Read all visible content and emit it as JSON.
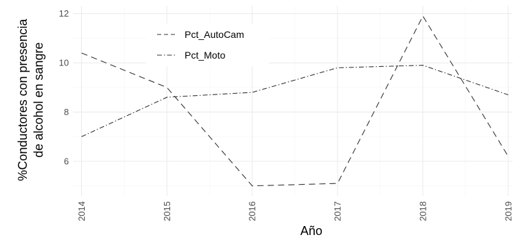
{
  "chart_data": {
    "type": "line",
    "x": [
      2014,
      2015,
      2016,
      2017,
      2018,
      2019
    ],
    "series": [
      {
        "name": "Pct_AutoCam",
        "linetype": "dashed",
        "color": "#333333",
        "values": [
          10.4,
          9.0,
          5.0,
          5.1,
          11.9,
          6.2
        ]
      },
      {
        "name": "Pct_Moto",
        "linetype": "dotdash",
        "color": "#333333",
        "values": [
          7.0,
          8.6,
          8.8,
          9.8,
          9.9,
          8.7
        ]
      }
    ],
    "xlabel": "Año",
    "ylabel_line1": "%Conductores con presencia",
    "ylabel_line2": "de alcohol en sangre",
    "y_ticks": [
      6,
      8,
      10,
      12
    ],
    "ylim": [
      4.6,
      12.3
    ],
    "xlim": [
      2013.9,
      2019.05
    ],
    "grid": true,
    "legend_position": "top-left",
    "theme": {
      "background": "#ffffff",
      "grid_major": "#ebebeb",
      "grid_minor": "#f5f5f5",
      "tick_text": "#4d4d4d"
    }
  }
}
